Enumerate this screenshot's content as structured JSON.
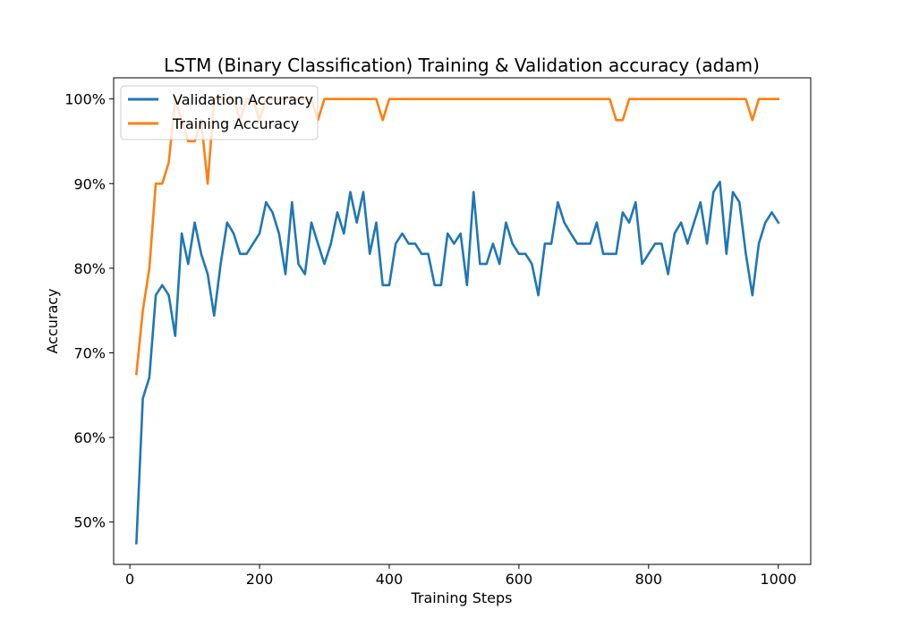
{
  "chart_data": {
    "type": "line",
    "title": "LSTM (Binary Classification) Training & Validation accuracy (adam)",
    "xlabel": "Training Steps",
    "ylabel": "Accuracy",
    "xlim": [
      -25,
      1050
    ],
    "ylim": [
      0.45,
      1.025
    ],
    "x_ticks": [
      0,
      200,
      400,
      600,
      800,
      1000
    ],
    "y_ticks": [
      0.5,
      0.6,
      0.7,
      0.8,
      0.9,
      1.0
    ],
    "x_tick_labels": [
      "0",
      "200",
      "400",
      "600",
      "800",
      "1000"
    ],
    "y_tick_labels": [
      "50%",
      "60%",
      "70%",
      "80%",
      "90%",
      "100%"
    ],
    "legend_position": "top-left",
    "x": [
      10,
      20,
      30,
      40,
      50,
      60,
      70,
      80,
      90,
      100,
      110,
      120,
      130,
      140,
      150,
      160,
      170,
      180,
      190,
      200,
      210,
      220,
      230,
      240,
      250,
      260,
      270,
      280,
      290,
      300,
      310,
      320,
      330,
      340,
      350,
      360,
      370,
      380,
      390,
      400,
      410,
      420,
      430,
      440,
      450,
      460,
      470,
      480,
      490,
      500,
      510,
      520,
      530,
      540,
      550,
      560,
      570,
      580,
      590,
      600,
      610,
      620,
      630,
      640,
      650,
      660,
      670,
      680,
      690,
      700,
      710,
      720,
      730,
      740,
      750,
      760,
      770,
      780,
      790,
      800,
      810,
      820,
      830,
      840,
      850,
      860,
      870,
      880,
      890,
      900,
      910,
      920,
      930,
      940,
      950,
      960,
      970,
      980,
      990,
      1000
    ],
    "series": [
      {
        "name": "Validation Accuracy",
        "color": "#1f77b4",
        "values": [
          0.475,
          0.646,
          0.671,
          0.768,
          0.78,
          0.768,
          0.72,
          0.841,
          0.805,
          0.854,
          0.817,
          0.793,
          0.744,
          0.805,
          0.854,
          0.841,
          0.817,
          0.817,
          0.829,
          0.841,
          0.878,
          0.866,
          0.841,
          0.793,
          0.878,
          0.805,
          0.793,
          0.854,
          0.829,
          0.805,
          0.829,
          0.866,
          0.841,
          0.89,
          0.854,
          0.89,
          0.817,
          0.854,
          0.78,
          0.78,
          0.829,
          0.841,
          0.829,
          0.829,
          0.817,
          0.817,
          0.78,
          0.78,
          0.841,
          0.829,
          0.841,
          0.78,
          0.89,
          0.805,
          0.805,
          0.829,
          0.805,
          0.854,
          0.829,
          0.817,
          0.817,
          0.805,
          0.768,
          0.829,
          0.829,
          0.878,
          0.854,
          0.841,
          0.829,
          0.829,
          0.829,
          0.854,
          0.817,
          0.817,
          0.817,
          0.866,
          0.854,
          0.878,
          0.805,
          0.817,
          0.829,
          0.829,
          0.793,
          0.841,
          0.854,
          0.829,
          0.854,
          0.878,
          0.829,
          0.89,
          0.902,
          0.817,
          0.89,
          0.878,
          0.817,
          0.768,
          0.829,
          0.854,
          0.866,
          0.854
        ]
      },
      {
        "name": "Training Accuracy",
        "color": "#ff7f0e",
        "values": [
          0.675,
          0.75,
          0.8,
          0.9,
          0.9,
          0.925,
          1.0,
          0.975,
          0.95,
          0.95,
          0.975,
          0.9,
          1.0,
          1.0,
          1.0,
          1.0,
          0.975,
          1.0,
          1.0,
          0.975,
          1.0,
          1.0,
          1.0,
          1.0,
          1.0,
          1.0,
          1.0,
          1.0,
          0.975,
          1.0,
          1.0,
          1.0,
          1.0,
          1.0,
          1.0,
          1.0,
          1.0,
          1.0,
          0.975,
          1.0,
          1.0,
          1.0,
          1.0,
          1.0,
          1.0,
          1.0,
          1.0,
          1.0,
          1.0,
          1.0,
          1.0,
          1.0,
          1.0,
          1.0,
          1.0,
          1.0,
          1.0,
          1.0,
          1.0,
          1.0,
          1.0,
          1.0,
          1.0,
          1.0,
          1.0,
          1.0,
          1.0,
          1.0,
          1.0,
          1.0,
          1.0,
          1.0,
          1.0,
          1.0,
          0.975,
          0.975,
          1.0,
          1.0,
          1.0,
          1.0,
          1.0,
          1.0,
          1.0,
          1.0,
          1.0,
          1.0,
          1.0,
          1.0,
          1.0,
          1.0,
          1.0,
          1.0,
          1.0,
          1.0,
          1.0,
          0.975,
          1.0,
          1.0,
          1.0,
          1.0
        ]
      }
    ]
  }
}
